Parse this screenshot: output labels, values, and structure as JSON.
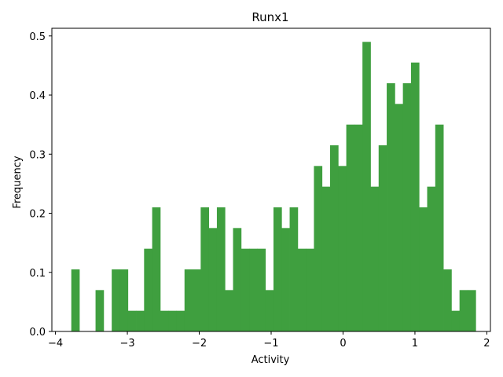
{
  "chart_data": {
    "type": "bar",
    "subtype": "histogram",
    "title": "Runx1",
    "xlabel": "Activity",
    "ylabel": "Frequency",
    "xlim": [
      -4.05,
      2.05
    ],
    "ylim": [
      0,
      0.513
    ],
    "xticks": [
      -4,
      -3,
      -2,
      -1,
      0,
      1,
      2
    ],
    "xtick_labels": [
      "−4",
      "−3",
      "−2",
      "−1",
      "0",
      "1",
      "2"
    ],
    "yticks": [
      0,
      0.1,
      0.2,
      0.3,
      0.4,
      0.5
    ],
    "ytick_labels": [
      "0.0",
      "0.1",
      "0.2",
      "0.3",
      "0.4",
      "0.5"
    ],
    "grid": false,
    "legend": false,
    "bar_color": "#3f9f3f",
    "bin_start": -3.78,
    "bin_width": 0.1125,
    "values": [
      0.105,
      0,
      0,
      0.07,
      0,
      0.105,
      0.105,
      0.035,
      0.035,
      0.14,
      0.21,
      0.035,
      0.035,
      0.035,
      0.105,
      0.105,
      0.21,
      0.175,
      0.21,
      0.07,
      0.175,
      0.14,
      0.14,
      0.14,
      0.07,
      0.21,
      0.175,
      0.21,
      0.14,
      0.14,
      0.28,
      0.245,
      0.315,
      0.28,
      0.35,
      0.35,
      0.49,
      0.245,
      0.315,
      0.42,
      0.385,
      0.42,
      0.455,
      0.21,
      0.245,
      0.35,
      0.105,
      0.035,
      0.07,
      0.07
    ]
  }
}
